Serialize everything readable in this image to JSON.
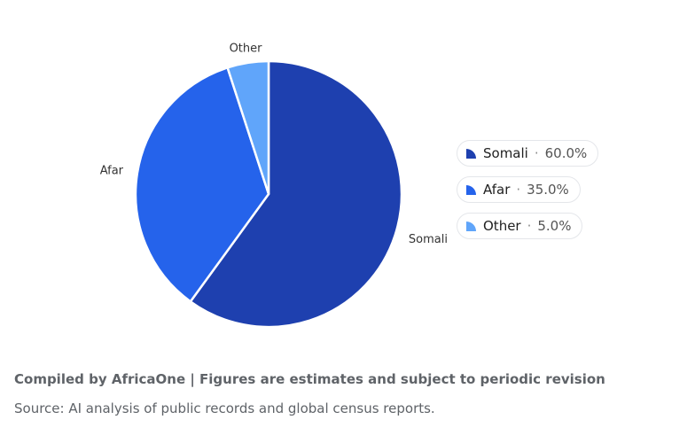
{
  "chart_data": {
    "type": "pie",
    "categories": [
      "Somali",
      "Afar",
      "Other"
    ],
    "values": [
      60.0,
      35.0,
      5.0
    ],
    "unit": "%",
    "colors": [
      "#1e40af",
      "#2563eb",
      "#60a5fa"
    ],
    "slice_labels": [
      "Somali",
      "Afar",
      "Other"
    ],
    "legend": {
      "placement": "right",
      "entries": [
        {
          "label": "Somali",
          "value": "60.0%",
          "color": "#1e40af"
        },
        {
          "label": "Afar",
          "value": "35.0%",
          "color": "#2563eb"
        },
        {
          "label": "Other",
          "value": "5.0%",
          "color": "#60a5fa"
        }
      ]
    }
  },
  "footer": {
    "note": "Compiled by AfricaOne | Figures are estimates and subject to periodic revision",
    "source": "Source: AI analysis of public records and global census reports."
  }
}
